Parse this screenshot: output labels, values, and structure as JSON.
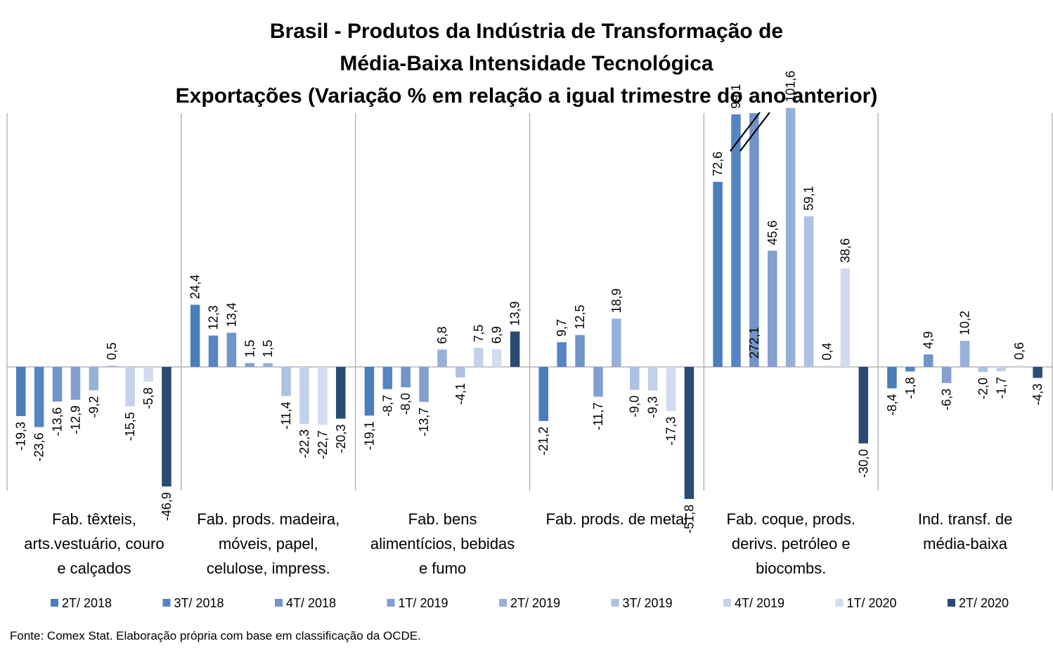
{
  "title_lines": [
    "Brasil - Produtos da Indústria de Transformação de",
    "Média-Baixa Intensidade Tecnológica",
    "Exportações (Variação % em relação a igual trimestre do ano anterior)"
  ],
  "source": "Fonte: Comex Stat. Elaboração própria com base em classificação da OCDE.",
  "chart_data": {
    "type": "bar",
    "title": "Brasil - Produtos da Indústria de Transformação de Média-Baixa Intensidade Tecnológica Exportações (Variação % em relação a igual trimestre do ano anterior)",
    "categories": [
      [
        "Fab. têxteis,",
        "arts.vestuário, couro",
        "e calçados"
      ],
      [
        "Fab. prods. madeira,",
        "móveis, papel,",
        "celulose, impress."
      ],
      [
        "Fab. bens",
        "alimentícios, bebidas",
        "e fumo"
      ],
      [
        "Fab. prods. de metal"
      ],
      [
        "Fab. coque, prods.",
        "derivs. petróleo e",
        "biocombs."
      ],
      [
        "Ind. transf. de",
        "média-baixa"
      ]
    ],
    "series": [
      {
        "name": "2T/ 2018",
        "color": "#4a7ebb",
        "values": [
          -19.3,
          24.4,
          -19.1,
          -21.2,
          72.6,
          -8.4
        ],
        "labels": [
          "-19,3",
          "24,4",
          "-19,1",
          "-21,2",
          "72,6",
          "-8,4"
        ]
      },
      {
        "name": "3T/ 2018",
        "color": "#5585c2",
        "values": [
          -23.6,
          12.3,
          -8.7,
          9.7,
          99.1,
          -1.8
        ],
        "labels": [
          "-23,6",
          "12,3",
          "-8,7",
          "9,7",
          "99,1",
          "-1,8"
        ]
      },
      {
        "name": "4T/ 2018",
        "color": "#7194c9",
        "values": [
          -13.6,
          13.4,
          -8.0,
          12.5,
          272.1,
          4.9
        ],
        "labels": [
          "-13,6",
          "13,4",
          "-8,0",
          "12,5",
          "272,1",
          "4,9"
        ]
      },
      {
        "name": "1T/ 2019",
        "color": "#859fcf",
        "values": [
          -12.9,
          1.5,
          -13.7,
          -11.7,
          45.6,
          -6.3
        ],
        "labels": [
          "-12,9",
          "1,5",
          "-13,7",
          "-11,7",
          "45,6",
          "-6,3"
        ]
      },
      {
        "name": "2T/ 2019",
        "color": "#97b0d9",
        "values": [
          -9.2,
          1.5,
          6.8,
          18.9,
          101.6,
          10.2
        ],
        "labels": [
          "-9,2",
          "1,5",
          "6,8",
          "18,9",
          "101,6",
          "10,2"
        ]
      },
      {
        "name": "3T/ 2019",
        "color": "#adc1e2",
        "values": [
          0.5,
          -11.4,
          -4.1,
          -9.0,
          59.1,
          -2.0
        ],
        "labels": [
          "0,5",
          "-11,4",
          "-4,1",
          "-9,0",
          "59,1",
          "-2,0"
        ]
      },
      {
        "name": "4T/ 2019",
        "color": "#c3d1ea",
        "values": [
          -15.5,
          -22.3,
          7.5,
          -9.3,
          0.4,
          -1.7
        ],
        "labels": [
          "-15,5",
          "-22,3",
          "7,5",
          "-9,3",
          "0,4",
          "-1,7"
        ]
      },
      {
        "name": "1T/ 2020",
        "color": "#d3dcee",
        "values": [
          -5.8,
          -22.7,
          6.9,
          -17.3,
          38.6,
          0.6
        ],
        "labels": [
          "-5,8",
          "-22,7",
          "6,9",
          "-17,3",
          "38,6",
          "0,6"
        ]
      },
      {
        "name": "2T/ 2020",
        "color": "#2b4a75",
        "values": [
          -46.9,
          -20.3,
          13.9,
          -51.8,
          -30.0,
          -4.3
        ],
        "labels": [
          "-46,9",
          "-20,3",
          "13,9",
          "-51,8",
          "-30,0",
          "-4,3"
        ]
      }
    ],
    "axis_break": {
      "category_index": 4,
      "series_index": 2
    },
    "ylim": [
      -73,
      152
    ],
    "value_labels_rotated": true,
    "grid": false,
    "legend_position": "bottom"
  }
}
